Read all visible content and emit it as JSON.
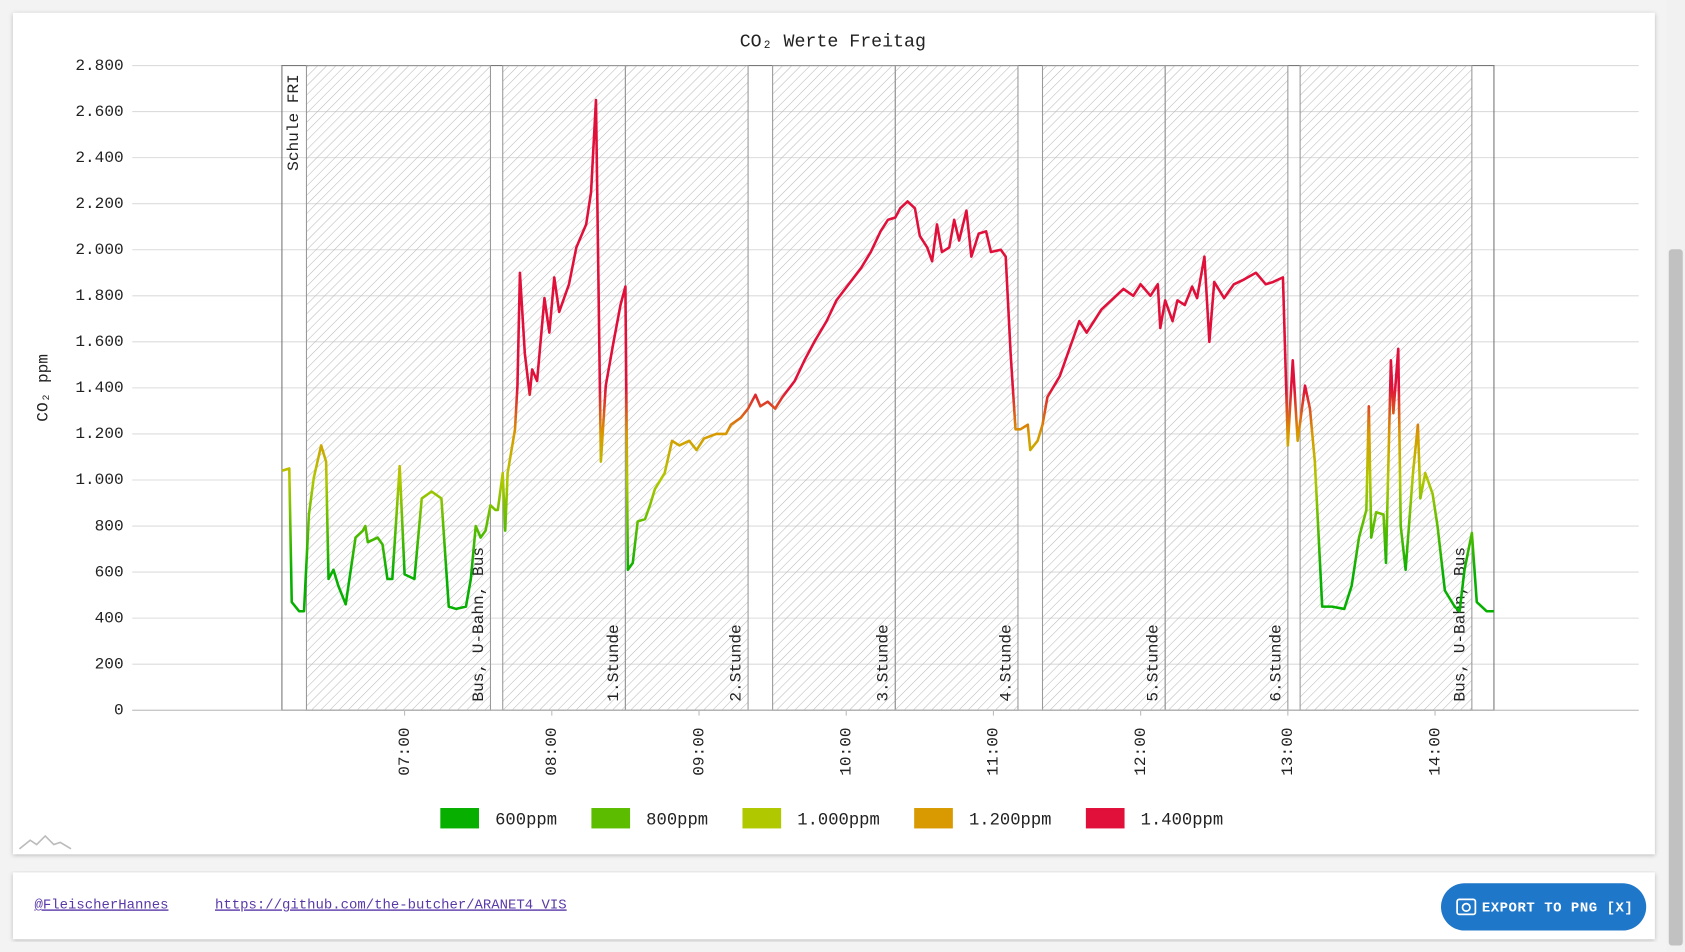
{
  "chart_data": {
    "type": "line",
    "title": "CO₂ Werte Freitag",
    "y_label": "CO₂ ppm",
    "xlim": [
      "05:09",
      "15:23"
    ],
    "xticks": [
      "07:00",
      "08:00",
      "09:00",
      "10:00",
      "11:00",
      "12:00",
      "13:00",
      "14:00"
    ],
    "ylim": [
      0,
      2800
    ],
    "yticks": [
      0,
      200,
      400,
      600,
      800,
      {
        "value": 1000,
        "label": "1.000"
      },
      {
        "value": 1200,
        "label": "1.200"
      },
      {
        "value": 1400,
        "label": "1.400"
      },
      {
        "value": 1600,
        "label": "1.600"
      },
      {
        "value": 1800,
        "label": "1.800"
      },
      {
        "value": 2000,
        "label": "2.000"
      },
      {
        "value": 2200,
        "label": "2.200"
      },
      {
        "value": 2400,
        "label": "2.400"
      },
      {
        "value": 2600,
        "label": "2.600"
      },
      {
        "value": 2800,
        "label": "2.800"
      }
    ],
    "grid": true,
    "legend": [
      {
        "name": "600ppm",
        "value": 600,
        "color": "#07b000"
      },
      {
        "name": "800ppm",
        "value": 800,
        "color": "#5cbd00"
      },
      {
        "name": "1.000ppm",
        "value": 1000,
        "color": "#b0c800"
      },
      {
        "name": "1.200ppm",
        "value": 1200,
        "color": "#d89a00"
      },
      {
        "name": "1.400ppm",
        "value": 1400,
        "color": "#e0103a"
      }
    ],
    "frame": {
      "label": "Schule FRI",
      "start": "06:10",
      "end": "14:24"
    },
    "bands": [
      {
        "label": "Bus, U-Bahn, Bus",
        "start": "06:20",
        "end": "07:35"
      },
      {
        "label": "1.Stunde",
        "start": "07:40",
        "end": "08:30"
      },
      {
        "label": "2.Stunde",
        "start": "08:30",
        "end": "09:20"
      },
      {
        "label": "3.Stunde",
        "start": "09:30",
        "end": "10:20"
      },
      {
        "label": "4.Stunde",
        "start": "10:20",
        "end": "11:10"
      },
      {
        "label": "5.Stunde",
        "start": "11:20",
        "end": "12:10"
      },
      {
        "label": "6.Stunde",
        "start": "12:10",
        "end": "13:00"
      },
      {
        "label": "Bus, U-Bahn, Bus",
        "start": "13:05",
        "end": "14:15"
      }
    ],
    "x": [
      "06:10",
      "06:13",
      "06:14",
      "06:17",
      "06:19",
      "06:21",
      "06:23",
      "06:26",
      "06:28",
      "06:29",
      "06:31",
      "06:33",
      "06:36",
      "06:40",
      "06:43",
      "06:44",
      "06:45",
      "06:49",
      "06:51",
      "06:53",
      "06:55",
      "06:58",
      "07:00",
      "07:04",
      "07:07",
      "07:11",
      "07:15",
      "07:18",
      "07:21",
      "07:25",
      "07:27",
      "07:29",
      "07:31",
      "07:33",
      "07:35",
      "07:37",
      "07:38",
      "07:40",
      "07:41",
      "07:42",
      "07:45",
      "07:46",
      "07:47",
      "07:49",
      "07:51",
      "07:52",
      "07:54",
      "07:57",
      "07:59",
      "08:01",
      "08:03",
      "08:07",
      "08:10",
      "08:12",
      "08:14",
      "08:16",
      "08:18",
      "08:19",
      "08:20",
      "08:22",
      "08:25",
      "08:28",
      "08:30",
      "08:31",
      "08:33",
      "08:35",
      "08:38",
      "08:40",
      "08:42",
      "08:46",
      "08:49",
      "08:52",
      "08:56",
      "08:59",
      "09:02",
      "09:07",
      "09:11",
      "09:13",
      "09:17",
      "09:20",
      "09:23",
      "09:25",
      "09:28",
      "09:31",
      "09:34",
      "09:39",
      "09:43",
      "09:47",
      "09:52",
      "09:56",
      "10:01",
      "10:06",
      "10:10",
      "10:14",
      "10:17",
      "10:20",
      "10:22",
      "10:25",
      "10:28",
      "10:30",
      "10:33",
      "10:35",
      "10:37",
      "10:39",
      "10:42",
      "10:44",
      "10:46",
      "10:49",
      "10:51",
      "10:54",
      "10:57",
      "10:59",
      "11:03",
      "11:05",
      "11:07",
      "11:09",
      "11:11",
      "11:14",
      "11:15",
      "11:18",
      "11:20",
      "11:22",
      "11:27",
      "11:31",
      "11:35",
      "11:38",
      "11:41",
      "11:44",
      "11:49",
      "11:53",
      "11:57",
      "12:00",
      "12:04",
      "12:07",
      "12:08",
      "12:10",
      "12:13",
      "12:15",
      "12:18",
      "12:21",
      "12:23",
      "12:26",
      "12:28",
      "12:30",
      "12:34",
      "12:38",
      "12:42",
      "12:47",
      "12:51",
      "12:54",
      "12:58",
      "13:00",
      "13:02",
      "13:04",
      "13:07",
      "13:09",
      "13:11",
      "13:14",
      "13:18",
      "13:23",
      "13:26",
      "13:29",
      "13:32",
      "13:33",
      "13:34",
      "13:36",
      "13:39",
      "13:40",
      "13:42",
      "13:43",
      "13:45",
      "13:46",
      "13:48",
      "13:51",
      "13:53",
      "13:54",
      "13:56",
      "13:59",
      "14:01",
      "14:04",
      "14:08",
      "14:10",
      "14:12",
      "14:15",
      "14:17",
      "14:21",
      "14:24"
    ],
    "values": [
      1040,
      1050,
      470,
      430,
      430,
      850,
      1010,
      1150,
      1080,
      570,
      610,
      540,
      460,
      750,
      780,
      800,
      730,
      750,
      720,
      570,
      570,
      1060,
      590,
      570,
      920,
      950,
      920,
      450,
      440,
      450,
      570,
      800,
      750,
      780,
      890,
      870,
      870,
      1030,
      780,
      1030,
      1220,
      1410,
      1900,
      1550,
      1370,
      1480,
      1430,
      1790,
      1640,
      1880,
      1730,
      1850,
      2010,
      2060,
      2110,
      2250,
      2650,
      1870,
      1080,
      1410,
      1590,
      1760,
      1840,
      610,
      640,
      820,
      830,
      890,
      960,
      1030,
      1170,
      1150,
      1170,
      1130,
      1180,
      1200,
      1200,
      1240,
      1270,
      1310,
      1370,
      1320,
      1340,
      1310,
      1360,
      1430,
      1520,
      1600,
      1690,
      1780,
      1850,
      1920,
      1990,
      2080,
      2130,
      2140,
      2180,
      2210,
      2180,
      2060,
      2010,
      1950,
      2110,
      1990,
      2010,
      2130,
      2040,
      2170,
      1970,
      2070,
      2080,
      1990,
      2000,
      1970,
      1550,
      1220,
      1220,
      1240,
      1130,
      1170,
      1240,
      1360,
      1450,
      1570,
      1690,
      1640,
      1690,
      1740,
      1790,
      1830,
      1800,
      1850,
      1800,
      1850,
      1660,
      1780,
      1690,
      1780,
      1760,
      1840,
      1790,
      1970,
      1600,
      1860,
      1790,
      1850,
      1870,
      1900,
      1850,
      1860,
      1880,
      1150,
      1520,
      1170,
      1410,
      1310,
      1080,
      450,
      450,
      440,
      540,
      750,
      870,
      1320,
      750,
      860,
      850,
      640,
      1520,
      1290,
      1570,
      800,
      610,
      1030,
      1240,
      920,
      1030,
      940,
      800,
      520,
      450,
      430,
      610,
      770,
      470,
      430,
      430
    ]
  },
  "footer": {
    "author": "@FleischerHannes",
    "link": "https://github.com/the-butcher/ARANET4_VIS",
    "button": "EXPORT TO PNG [X]"
  }
}
